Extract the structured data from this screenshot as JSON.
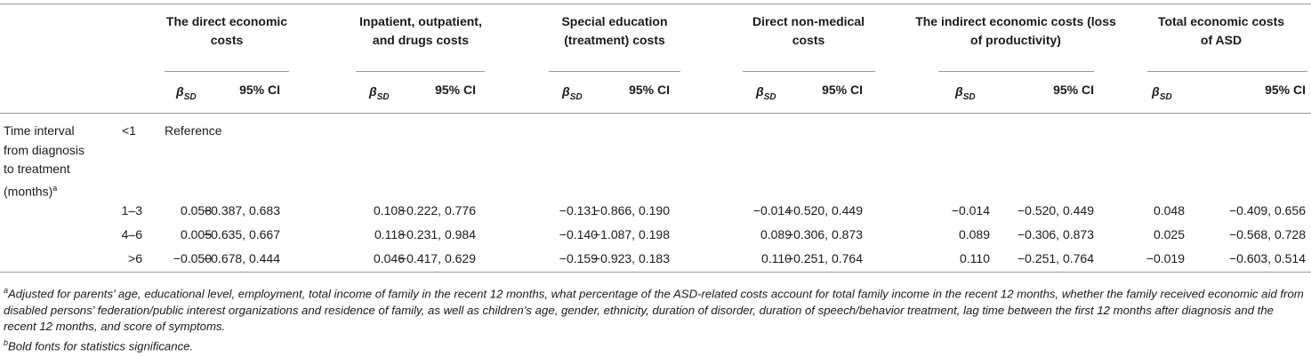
{
  "table": {
    "groups": [
      "The direct economic costs",
      "Inpatient, outpatient, and drugs costs",
      "Special education (treatment) costs",
      "Direct non-medical costs",
      "The indirect economic costs (loss of productivity)",
      "Total economic costs of ASD"
    ],
    "group_lines": [
      [
        "The direct economic",
        "costs"
      ],
      [
        "Inpatient, outpatient,",
        "and drugs costs"
      ],
      [
        "Special education",
        "(treatment) costs"
      ],
      [
        "Direct non-medical",
        "costs"
      ],
      [
        "The indirect economic costs (loss",
        "of productivity)"
      ],
      [
        "Total economic costs",
        "of ASD"
      ]
    ],
    "sub_beta": "β",
    "sub_beta_subscript": "SD",
    "sub_ci": "95% CI",
    "row_label_lines": [
      "Time interval",
      "from diagnosis",
      "to treatment",
      "(months)"
    ],
    "row_label_sup": "a",
    "reference_interval": "<1",
    "reference_text": "Reference",
    "rows": [
      {
        "interval": "1–3",
        "values": [
          "0.058",
          "−0.387, 0.683",
          "0.108",
          "−0.222, 0.776",
          "−0.131",
          "−0.866, 0.190",
          "−0.014",
          "−0.520, 0.449",
          "−0.014",
          "−0.520, 0.449",
          "0.048",
          "−0.409, 0.656"
        ]
      },
      {
        "interval": "4–6",
        "values": [
          "0.005",
          "−0.635, 0.667",
          "0.118",
          "−0.231, 0.984",
          "−0.140",
          "−1.087, 0.198",
          "0.089",
          "−0.306, 0.873",
          "0.089",
          "−0.306, 0.873",
          "0.025",
          "−0.568, 0.728"
        ]
      },
      {
        "interval": ">6",
        "values": [
          "−0.050",
          "−0.678, 0.444",
          "0.046",
          "−0.417, 0.629",
          "−0.159",
          "−0.923, 0.183",
          "0.110",
          "−0.251, 0.764",
          "0.110",
          "−0.251, 0.764",
          "−0.019",
          "−0.603, 0.514"
        ]
      }
    ]
  },
  "footnotes": {
    "a_marker": "a",
    "a_text": "Adjusted for parents’ age, educational level, employment, total income of family in the recent 12 months, what percentage of the ASD-related costs account for total family income in the recent 12 months, whether the family received economic aid from disabled persons’ federation/public interest organizations and residence of family, as well as children’s age, gender, ethnicity, duration of disorder, duration of speech/behavior treatment, lag time between the first 12 months after diagnosis and the recent 12 months, and score of symptoms.",
    "b_marker": "b",
    "b_text": "Bold fonts for statistics significance."
  }
}
